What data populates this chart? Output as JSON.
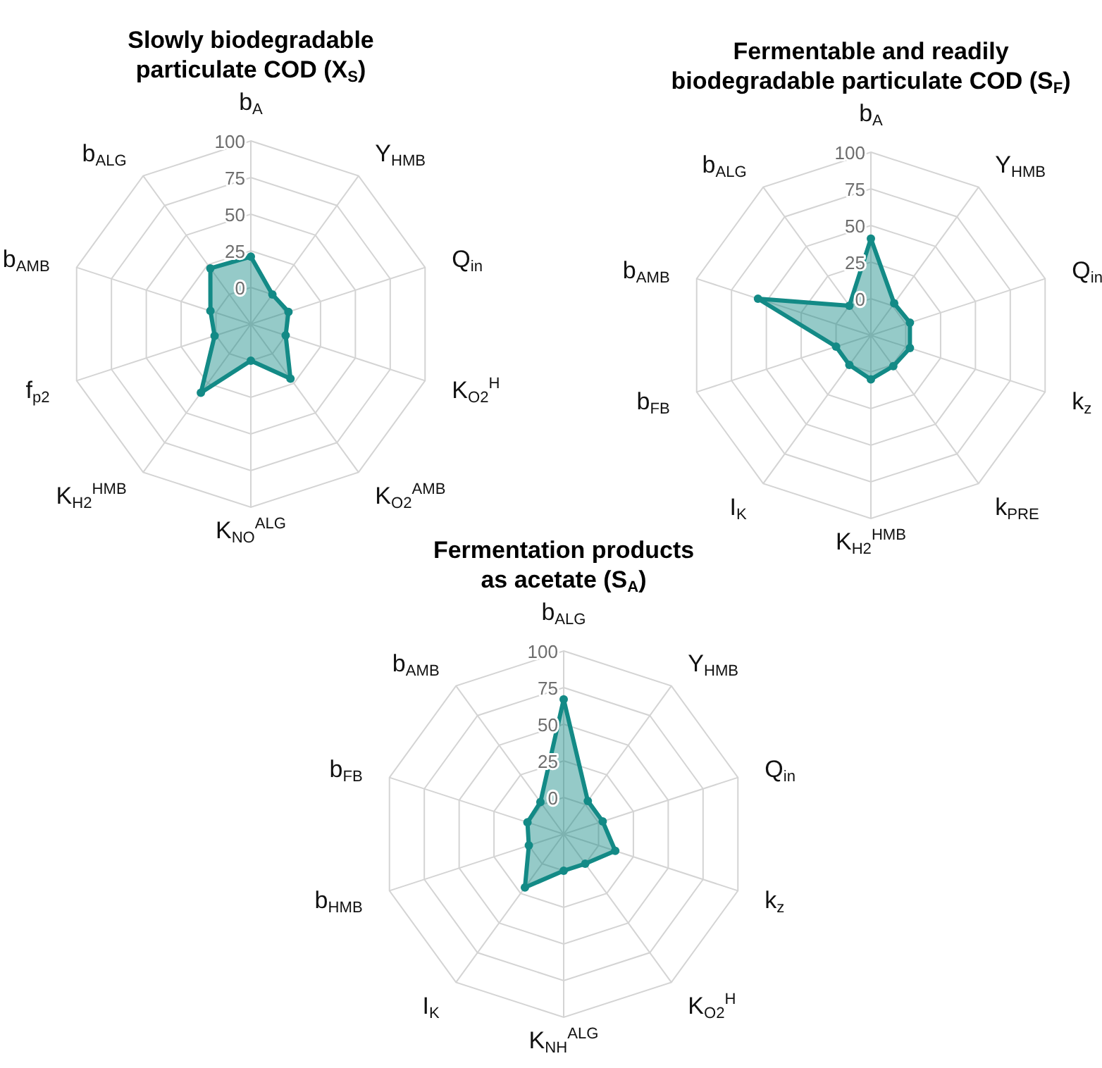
{
  "chart_data": [
    {
      "type": "radar",
      "title": "Slowly biodegradable particulate COD (X$_{S}$)",
      "categories": [
        "b$_{A}$",
        "Y$_{HMB}$",
        "Q$_{in}$",
        "K$_{O2}$$^{H}$",
        "K$_{O2}$$^{AMB}$",
        "K$_{NO}$$^{ALG}$",
        "K$_{H2}$$^{HMB}$",
        "f$_{p2}$",
        "b$_{AMB}$",
        "b$_{ALG}$"
      ],
      "series": [
        {
          "color": "#138a86",
          "values": [
            21,
            0,
            2,
            0,
            21,
            0,
            33,
            1,
            4,
            22
          ]
        }
      ],
      "ylim": [
        -25,
        100
      ],
      "yticks": [
        0,
        25,
        50,
        75,
        100
      ],
      "grid": true,
      "marker": "circle"
    },
    {
      "type": "radar",
      "title": "Fermentable and readily biodegradable particulate COD (S$_{F}$)",
      "categories": [
        "b$_{A}$",
        "Y$_{HMB}$",
        "Q$_{in}$",
        "k$_{z}$",
        "k$_{PRE}$",
        "K$_{H2}$$^{HMB}$",
        "I$_{K}$",
        "b$_{FB}$",
        "b$_{AMB}$",
        "b$_{ALG}$"
      ],
      "series": [
        {
          "color": "#138a86",
          "values": [
            41,
            2,
            3,
            3,
            1,
            5,
            0,
            0,
            56,
            0
          ]
        }
      ],
      "ylim": [
        -25,
        100
      ],
      "yticks": [
        0,
        25,
        50,
        75,
        100
      ],
      "grid": true,
      "marker": "circle"
    },
    {
      "type": "radar",
      "title": "Fermentation products as acetate (S$_{A}$)",
      "categories": [
        "b$_{ALG}$",
        "Y$_{HMB}$",
        "Q$_{in}$",
        "k$_{z}$",
        "K$_{O2}$$^{H}$",
        "K$_{NH}$$^{ALG}$",
        "I$_{K}$",
        "b$_{HMB}$",
        "b$_{FB}$",
        "b$_{AMB}$"
      ],
      "series": [
        {
          "color": "#138a86",
          "values": [
            67,
            3,
            3,
            12,
            0,
            0,
            20,
            0,
            1,
            2
          ]
        }
      ],
      "ylim": [
        -25,
        100
      ],
      "yticks": [
        0,
        25,
        50,
        75,
        100
      ],
      "grid": true,
      "marker": "circle"
    }
  ]
}
